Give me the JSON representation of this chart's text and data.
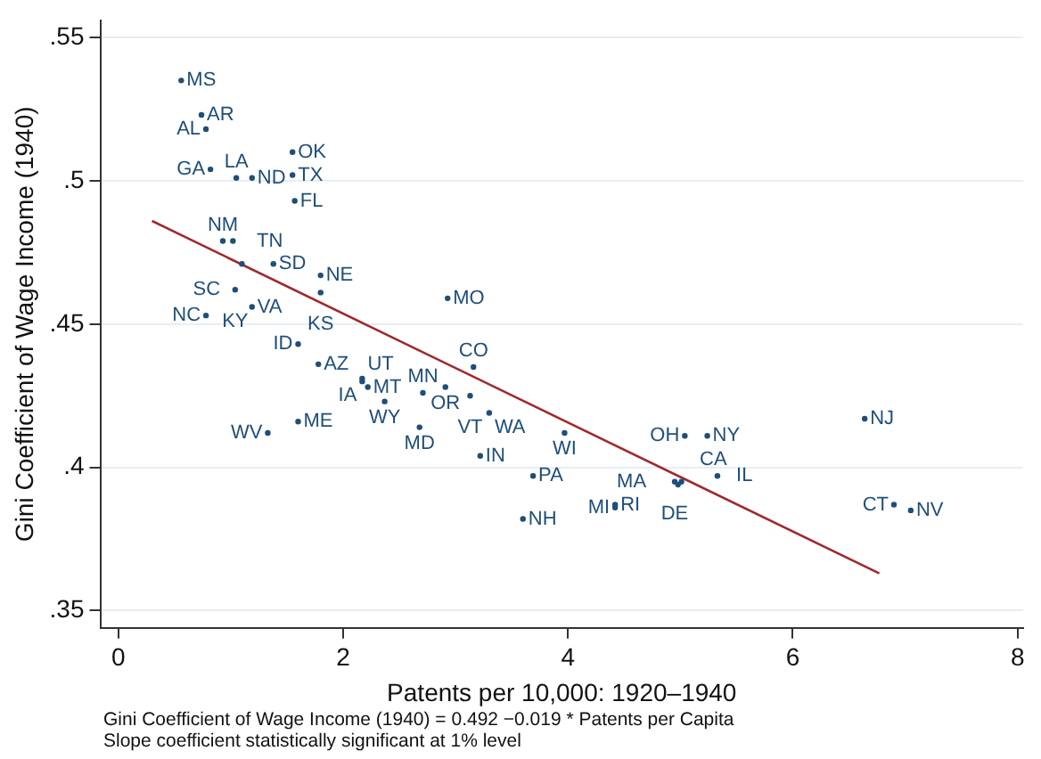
{
  "chart_data": {
    "type": "scatter",
    "xlabel": "Patents per 10,000: 1920–1940",
    "ylabel": "Gini Coefficient of Wage Income (1940)",
    "xlim": [
      -0.16,
      8.05
    ],
    "xticks": [
      0,
      2,
      4,
      6,
      8
    ],
    "ylim": [
      0.344,
      0.556
    ],
    "yticks": [
      {
        "value": 0.35,
        "label": ".35"
      },
      {
        "value": 0.4,
        "label": ".4"
      },
      {
        "value": 0.45,
        "label": ".45"
      },
      {
        "value": 0.5,
        "label": ".5"
      },
      {
        "value": 0.55,
        "label": ".55"
      }
    ],
    "grid": "y",
    "legend": false,
    "annotations": [
      "Gini Coefficient of Wage Income (1940) = 0.492 −0.019 * Patents per Capita",
      "Slope coefficient statistically significant at 1% level"
    ],
    "series": [
      {
        "type": "scatter",
        "color": "#1f4e79",
        "marker": "circle",
        "x": [
          0.56,
          0.74,
          0.78,
          0.82,
          1.05,
          1.19,
          1.55,
          1.55,
          1.57,
          0.93,
          1.02,
          1.1,
          1.38,
          1.8,
          1.8,
          1.04,
          1.19,
          0.78,
          2.93,
          1.6,
          1.78,
          2.17,
          2.17,
          2.22,
          2.37,
          2.71,
          2.91,
          3.13,
          3.16,
          2.68,
          3.3,
          3.22,
          3.69,
          3.6,
          3.97,
          4.42,
          4.42,
          5.04,
          5.24,
          4.95,
          4.98,
          5.01,
          5.33,
          6.64,
          6.9,
          7.05,
          1.6,
          1.33
        ],
        "values": [
          0.535,
          0.523,
          0.518,
          0.504,
          0.501,
          0.501,
          0.51,
          0.502,
          0.493,
          0.479,
          0.479,
          0.471,
          0.471,
          0.467,
          0.461,
          0.462,
          0.456,
          0.453,
          0.459,
          0.443,
          0.436,
          0.431,
          0.43,
          0.428,
          0.423,
          0.426,
          0.428,
          0.425,
          0.435,
          0.414,
          0.419,
          0.404,
          0.397,
          0.382,
          0.412,
          0.387,
          0.386,
          0.411,
          0.411,
          0.395,
          0.394,
          0.395,
          0.397,
          0.417,
          0.387,
          0.385,
          0.416,
          0.412
        ],
        "value_labels": [
          "MS",
          "AR",
          "AL",
          "GA",
          "LA",
          "ND",
          "OK",
          "TX",
          "FL",
          "NM",
          "TN",
          "SC",
          "SD",
          "NE",
          "KS",
          "KY",
          "VA",
          "NC",
          "MO",
          "ID",
          "AZ",
          "UT",
          "IA",
          "MT",
          "WY",
          "MN",
          "OR",
          "VT",
          "CO",
          "MD",
          "WA",
          "IN",
          "PA",
          "NH",
          "WI",
          "RI",
          "MI",
          "OH",
          "NY",
          "DE",
          "CA",
          "MA",
          "IL",
          "NJ",
          "CT",
          "NV",
          "ME",
          "WV"
        ]
      },
      {
        "type": "line",
        "color": "#9e2a2b",
        "marker": "none",
        "x": [
          0.3,
          6.77
        ],
        "values": [
          0.486,
          0.363
        ]
      }
    ]
  }
}
